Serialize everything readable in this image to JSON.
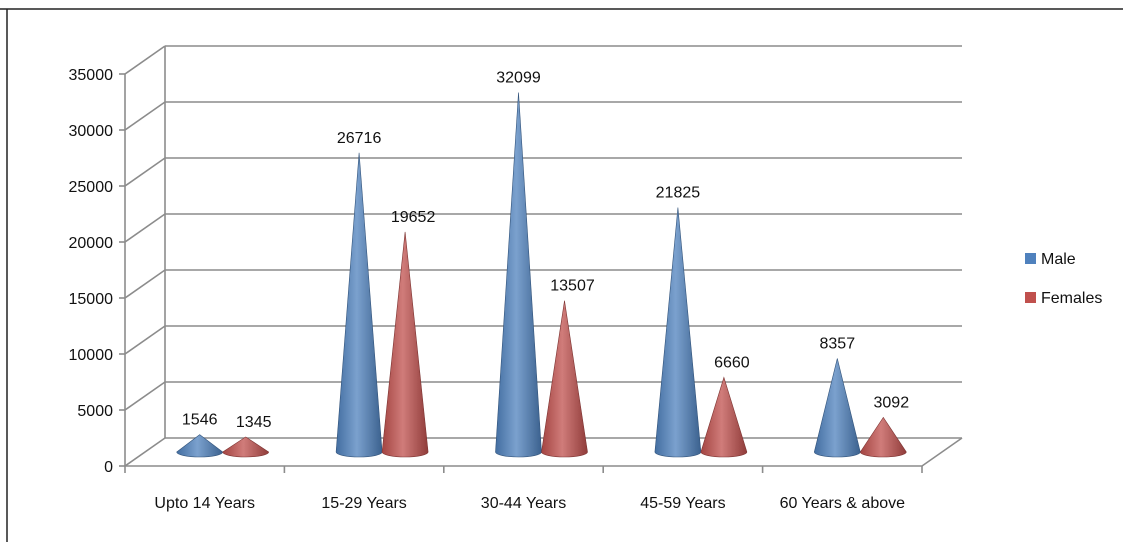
{
  "chart_data": {
    "type": "bar",
    "shape": "cone-3d",
    "title": "",
    "xlabel": "",
    "ylabel": "",
    "categories": [
      "Upto 14 Years",
      "15-29 Years",
      "30-44 Years",
      "45-59 Years",
      "60 Years & above"
    ],
    "series": [
      {
        "name": "Male",
        "values": [
          1546,
          26716,
          32099,
          21825,
          8357
        ],
        "color": "#4f81bd"
      },
      {
        "name": "Females",
        "values": [
          1345,
          19652,
          13507,
          6660,
          3092
        ],
        "color": "#c0504d"
      }
    ],
    "ylim": [
      0,
      35000
    ],
    "yticks": [
      0,
      5000,
      10000,
      15000,
      20000,
      25000,
      30000,
      35000
    ],
    "grid": true,
    "data_labels": true,
    "legend_position": "right"
  }
}
